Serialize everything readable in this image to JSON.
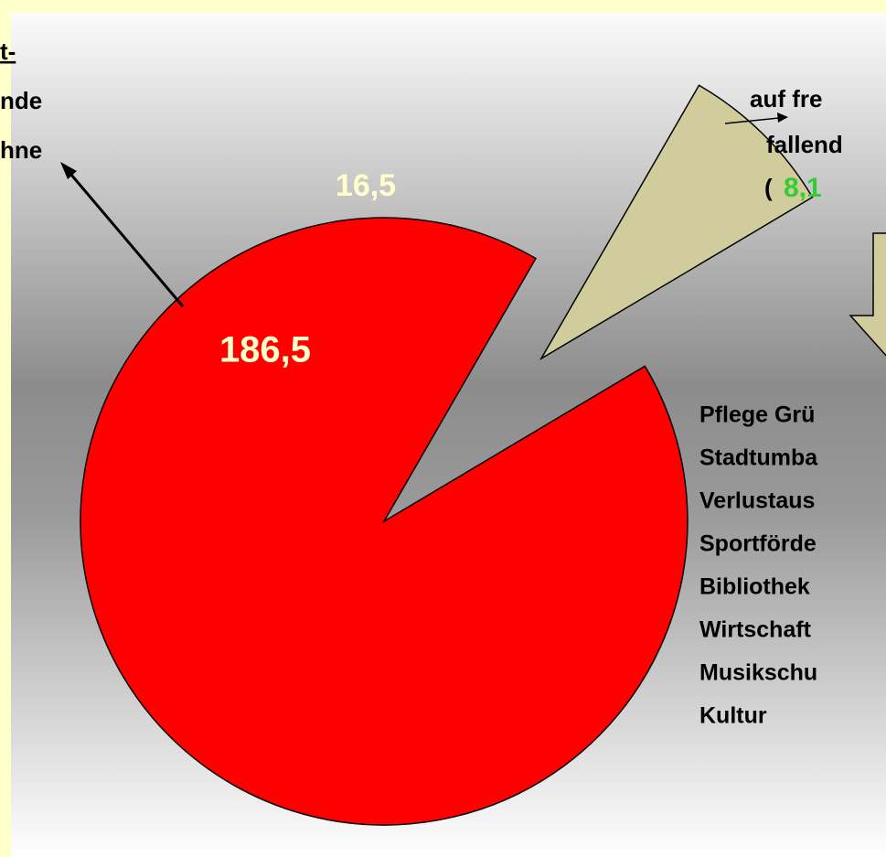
{
  "chart_data": {
    "type": "pie",
    "values": [
      186.5,
      16.5
    ],
    "value_labels": [
      "186,5",
      "16,5"
    ],
    "colors": [
      "#ff0000",
      "#d0cc9c"
    ]
  },
  "annotations": {
    "left": [
      "t-",
      "nde",
      "hne"
    ],
    "top_right": [
      "auf fre",
      "fallend",
      "(",
      "8,1"
    ],
    "list": [
      "Pflege Grü",
      "Stadtumba",
      "Verlustaus",
      "Sportförde",
      "Bibliothek",
      "Wirtschaft",
      "Musikschu",
      "Kultur"
    ]
  }
}
